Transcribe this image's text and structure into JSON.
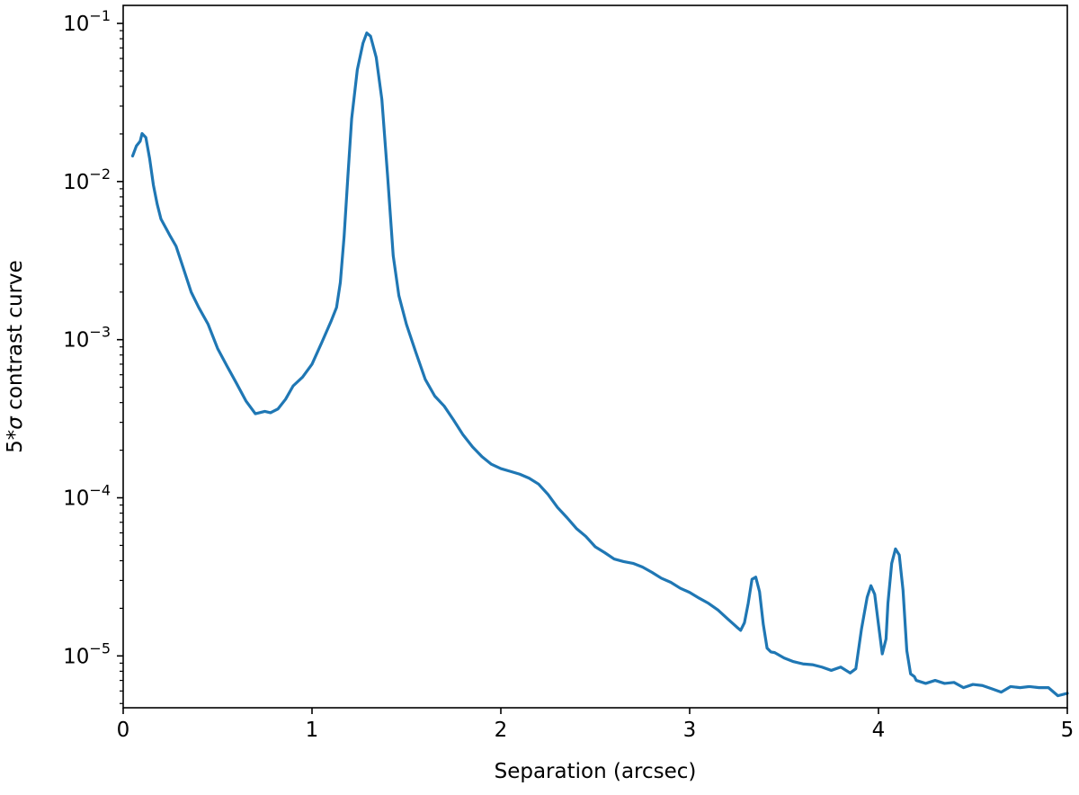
{
  "chart_data": {
    "type": "line",
    "title": "",
    "xlabel": "Separation (arcsec)",
    "ylabel_prefix": "5*",
    "ylabel_sigma": "σ",
    "ylabel_suffix": " contrast curve",
    "xlim": [
      0,
      5
    ],
    "ylim": [
      4.7e-06,
      0.13
    ],
    "yscale": "log",
    "grid": false,
    "legend": "none",
    "line_color": "#1f77b4",
    "xticks": [
      {
        "value": 0,
        "label": "0"
      },
      {
        "value": 1,
        "label": "1"
      },
      {
        "value": 2,
        "label": "2"
      },
      {
        "value": 3,
        "label": "3"
      },
      {
        "value": 4,
        "label": "4"
      },
      {
        "value": 5,
        "label": "5"
      }
    ],
    "yticks": [
      {
        "value": 1e-05,
        "base": "10",
        "exp": "−5"
      },
      {
        "value": 0.0001,
        "base": "10",
        "exp": "−4"
      },
      {
        "value": 0.001,
        "base": "10",
        "exp": "−3"
      },
      {
        "value": 0.01,
        "base": "10",
        "exp": "−2"
      },
      {
        "value": 0.1,
        "base": "10",
        "exp": "−1"
      }
    ],
    "series": [
      {
        "x": [
          0.05,
          0.07,
          0.09,
          0.1,
          0.12,
          0.14,
          0.16,
          0.18,
          0.2,
          0.25,
          0.28,
          0.32,
          0.36,
          0.4,
          0.45,
          0.5,
          0.55,
          0.6,
          0.65,
          0.7,
          0.75,
          0.78,
          0.82,
          0.86,
          0.9,
          0.95,
          1.0,
          1.05,
          1.1,
          1.13,
          1.15,
          1.17,
          1.19,
          1.21,
          1.24,
          1.27,
          1.29,
          1.31,
          1.34,
          1.37,
          1.4,
          1.43,
          1.46,
          1.5,
          1.55,
          1.6,
          1.65,
          1.7,
          1.75,
          1.8,
          1.85,
          1.9,
          1.95,
          2.0,
          2.05,
          2.1,
          2.15,
          2.2,
          2.25,
          2.3,
          2.35,
          2.4,
          2.45,
          2.5,
          2.55,
          2.6,
          2.65,
          2.7,
          2.75,
          2.8,
          2.85,
          2.9,
          2.95,
          3.0,
          3.05,
          3.1,
          3.15,
          3.2,
          3.25,
          3.27,
          3.29,
          3.31,
          3.33,
          3.35,
          3.37,
          3.39,
          3.41,
          3.43,
          3.45,
          3.5,
          3.55,
          3.6,
          3.65,
          3.7,
          3.75,
          3.8,
          3.85,
          3.88,
          3.91,
          3.94,
          3.96,
          3.98,
          4.0,
          4.02,
          4.04,
          4.05,
          4.07,
          4.09,
          4.11,
          4.13,
          4.15,
          4.17,
          4.19,
          4.2,
          4.25,
          4.3,
          4.35,
          4.4,
          4.45,
          4.5,
          4.55,
          4.6,
          4.65,
          4.7,
          4.75,
          4.8,
          4.85,
          4.9,
          4.95,
          5.0
        ],
        "y": [
          0.0145,
          0.0168,
          0.018,
          0.0201,
          0.019,
          0.014,
          0.0095,
          0.0072,
          0.0058,
          0.0045,
          0.0039,
          0.0028,
          0.002,
          0.0016,
          0.00125,
          0.00088,
          0.00068,
          0.00053,
          0.00041,
          0.00034,
          0.000352,
          0.000345,
          0.000365,
          0.00042,
          0.00051,
          0.00058,
          0.0007,
          0.00095,
          0.0013,
          0.0016,
          0.0023,
          0.0045,
          0.0108,
          0.025,
          0.051,
          0.075,
          0.087,
          0.083,
          0.061,
          0.033,
          0.011,
          0.0034,
          0.0019,
          0.00125,
          0.00083,
          0.00056,
          0.00044,
          0.00038,
          0.00031,
          0.00025,
          0.00021,
          0.000182,
          0.000163,
          0.000153,
          0.000147,
          0.000141,
          0.000133,
          0.000122,
          0.000105,
          8.7e-05,
          7.5e-05,
          6.4e-05,
          5.7e-05,
          4.9e-05,
          4.5e-05,
          4.1e-05,
          3.95e-05,
          3.85e-05,
          3.65e-05,
          3.38e-05,
          3.1e-05,
          2.92e-05,
          2.68e-05,
          2.52e-05,
          2.32e-05,
          2.15e-05,
          1.95e-05,
          1.72e-05,
          1.52e-05,
          1.45e-05,
          1.62e-05,
          2.15e-05,
          3.05e-05,
          3.15e-05,
          2.55e-05,
          1.58e-05,
          1.12e-05,
          1.06e-05,
          1.05e-05,
          9.7e-06,
          9.2e-06,
          8.9e-06,
          8.8e-06,
          8.5e-06,
          8.1e-06,
          8.5e-06,
          7.8e-06,
          8.3e-06,
          1.48e-05,
          2.35e-05,
          2.78e-05,
          2.45e-05,
          1.58e-05,
          1.03e-05,
          1.28e-05,
          2.15e-05,
          3.85e-05,
          4.75e-05,
          4.35e-05,
          2.6e-05,
          1.08e-05,
          7.7e-06,
          7.4e-06,
          7e-06,
          6.7e-06,
          7e-06,
          6.7e-06,
          6.8e-06,
          6.3e-06,
          6.6e-06,
          6.5e-06,
          6.2e-06,
          5.9e-06,
          6.4e-06,
          6.3e-06,
          6.4e-06,
          6.3e-06,
          6.3e-06,
          5.6e-06,
          5.8e-06
        ]
      }
    ]
  }
}
